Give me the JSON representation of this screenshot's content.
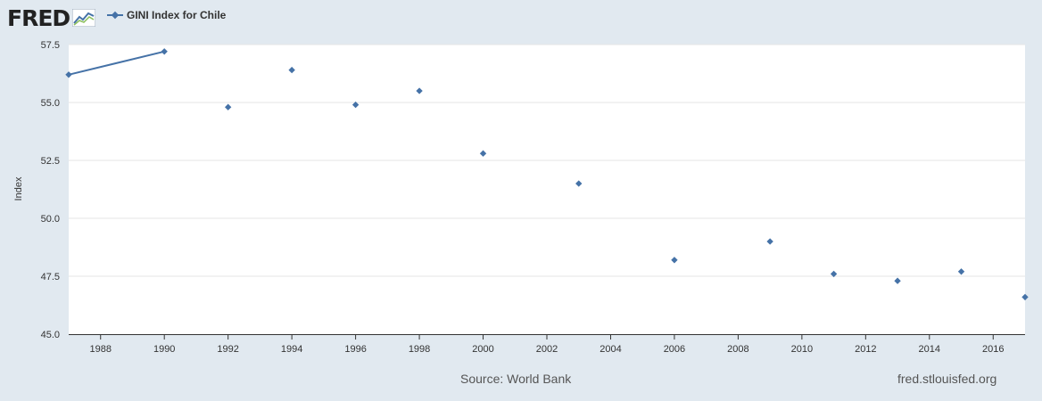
{
  "header": {
    "logo_text": "FRED",
    "logo_icon": "chart-trend-icon",
    "legend_label": "GINI Index for Chile"
  },
  "footer": {
    "source": "Source: World Bank",
    "site": "fred.stlouisfed.org"
  },
  "colors": {
    "series": "#4572a7",
    "background": "#e1e9f0",
    "plot": "#ffffff",
    "grid": "#e6e6e6"
  },
  "chart_data": {
    "type": "line",
    "title": "",
    "xlabel": "",
    "ylabel": "Index",
    "xlim": [
      1987,
      2017
    ],
    "ylim": [
      45.0,
      57.5
    ],
    "grid": true,
    "legend": "top-left",
    "x_ticks": [
      1988,
      1990,
      1992,
      1994,
      1996,
      1998,
      2000,
      2002,
      2004,
      2006,
      2008,
      2010,
      2012,
      2014,
      2016
    ],
    "y_ticks": [
      "45.0",
      "47.5",
      "50.0",
      "52.5",
      "55.0",
      "57.5"
    ],
    "series": [
      {
        "name": "GINI Index for Chile",
        "x": [
          1987,
          1990,
          1992,
          1994,
          1996,
          1998,
          2000,
          2003,
          2006,
          2009,
          2011,
          2013,
          2015,
          2017
        ],
        "y": [
          56.2,
          57.2,
          54.8,
          56.4,
          54.9,
          55.5,
          52.8,
          51.5,
          48.2,
          49.0,
          47.6,
          47.3,
          47.7,
          46.6
        ]
      }
    ]
  }
}
